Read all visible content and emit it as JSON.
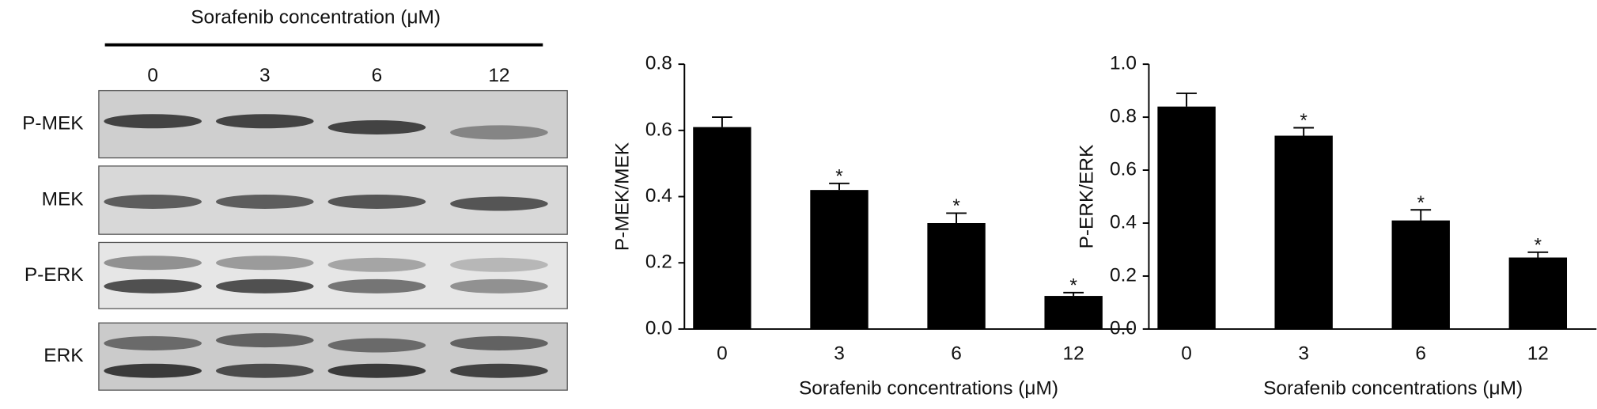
{
  "blot": {
    "title": "Sorafenib concentration (μM)",
    "lanes": [
      "0",
      "3",
      "6",
      "12"
    ],
    "rows": [
      "P-MEK",
      "MEK",
      "P-ERK",
      "ERK"
    ]
  },
  "chart_data": [
    {
      "type": "bar",
      "ylabel": "P-MEK/MEK",
      "xlabel": "Sorafenib concentrations (μM)",
      "categories": [
        "0",
        "3",
        "6",
        "12"
      ],
      "values": [
        0.61,
        0.42,
        0.32,
        0.1
      ],
      "errors": [
        0.03,
        0.02,
        0.03,
        0.01
      ],
      "significance": [
        null,
        "*",
        "*",
        "*"
      ],
      "color": "#000000",
      "ylim": [
        0,
        0.8
      ],
      "yticks": [
        {
          "value": 0,
          "label": "0.0"
        },
        0.2,
        0.4,
        0.6,
        0.8
      ]
    },
    {
      "type": "bar",
      "ylabel": "P-ERK/ERK",
      "xlabel": "Sorafenib concentrations (μM)",
      "categories": [
        "0",
        "3",
        "6",
        "12"
      ],
      "values": [
        0.84,
        0.73,
        0.41,
        0.27
      ],
      "errors": [
        0.05,
        0.03,
        0.04,
        0.02
      ],
      "significance": [
        null,
        "*",
        "*",
        "*"
      ],
      "color": "#000000",
      "ylim": [
        0,
        1
      ],
      "yticks": [
        {
          "value": 0,
          "label": "0.0"
        },
        0.2,
        0.4,
        0.6,
        0.8,
        {
          "value": 1,
          "label": "1.0"
        }
      ]
    }
  ]
}
